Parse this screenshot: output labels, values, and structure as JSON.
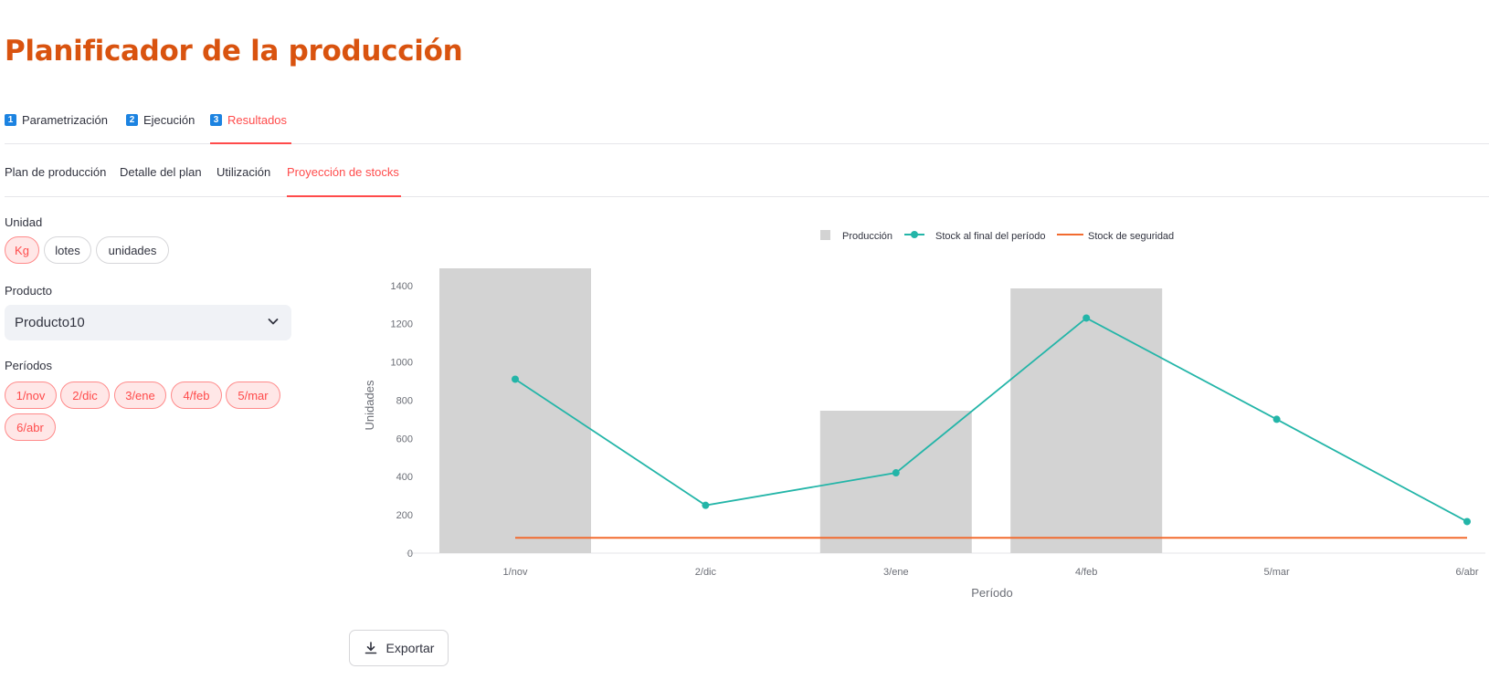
{
  "page_title": "Planificador de la producción",
  "tabs_top": [
    {
      "num": "1",
      "label": "Parametrización",
      "active": false
    },
    {
      "num": "2",
      "label": "Ejecución",
      "active": false
    },
    {
      "num": "3",
      "label": "Resultados",
      "active": true
    }
  ],
  "tabs_sub": [
    {
      "label": "Plan de producción",
      "active": false
    },
    {
      "label": "Detalle del plan",
      "active": false
    },
    {
      "label": "Utilización",
      "active": false
    },
    {
      "label": "Proyección de stocks",
      "active": true
    }
  ],
  "sidebar": {
    "unidad_label": "Unidad",
    "unidad_options": [
      {
        "label": "Kg",
        "selected": true
      },
      {
        "label": "lotes",
        "selected": false
      },
      {
        "label": "unidades",
        "selected": false
      }
    ],
    "producto_label": "Producto",
    "producto_value": "Producto10",
    "periodos_label": "Períodos",
    "periodos": [
      {
        "label": "1/nov",
        "selected": true
      },
      {
        "label": "2/dic",
        "selected": true
      },
      {
        "label": "3/ene",
        "selected": true
      },
      {
        "label": "4/feb",
        "selected": true
      },
      {
        "label": "5/mar",
        "selected": true
      },
      {
        "label": "6/abr",
        "selected": true
      }
    ]
  },
  "export_label": "Exportar",
  "colors": {
    "title": "#d9530f",
    "accent": "#ff4b4b",
    "bar": "#d3d3d3",
    "stock_line": "#23b5a8",
    "safety_line": "#f26b2f"
  },
  "chart_data": {
    "type": "bar+line",
    "categories": [
      "1/nov",
      "2/dic",
      "3/ene",
      "4/feb",
      "5/mar",
      "6/abr"
    ],
    "series": [
      {
        "name": "Producción",
        "kind": "bar",
        "values": [
          1490,
          0,
          745,
          1385,
          0,
          0
        ]
      },
      {
        "name": "Stock al final del período",
        "kind": "line",
        "values": [
          910,
          250,
          420,
          1230,
          700,
          165
        ]
      },
      {
        "name": "Stock de seguridad",
        "kind": "line",
        "values": [
          80,
          80,
          80,
          80,
          80,
          80
        ]
      }
    ],
    "xlabel": "Período",
    "ylabel": "Unidades",
    "ylim": [
      0,
      1500
    ],
    "yticks": [
      0,
      200,
      400,
      600,
      800,
      1000,
      1200,
      1400
    ],
    "legend_position": "top-center"
  }
}
